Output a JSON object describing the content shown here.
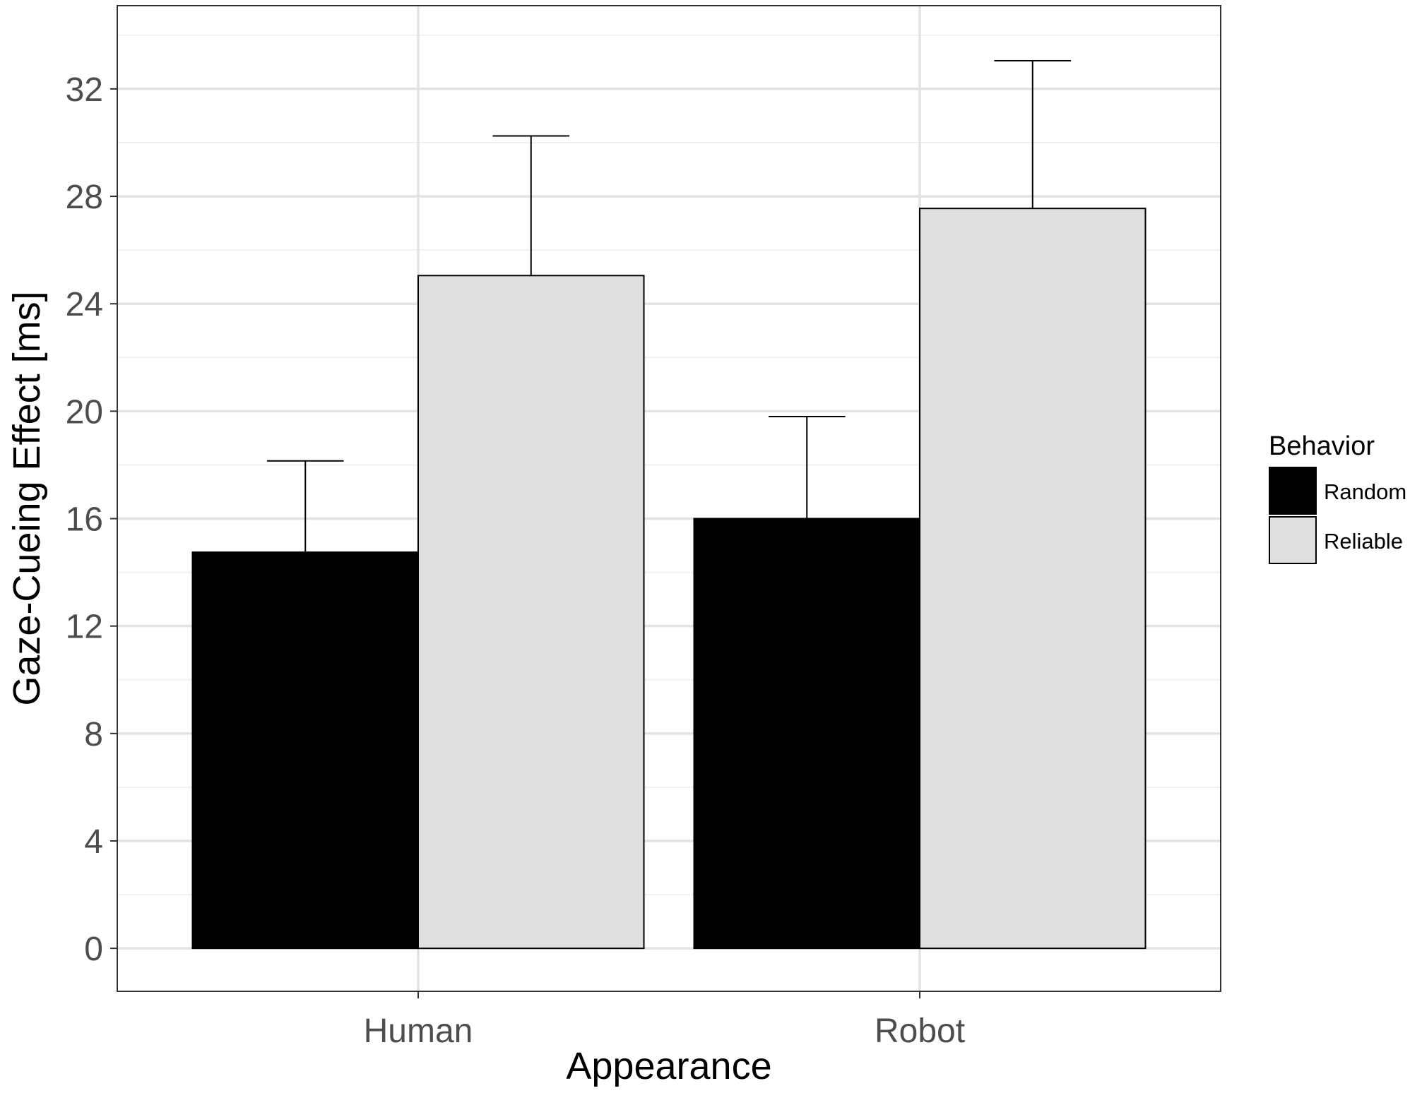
{
  "chart_data": {
    "type": "bar",
    "categories": [
      "Human",
      "Robot"
    ],
    "series": [
      {
        "name": "Random",
        "values": [
          14.75,
          16.0
        ],
        "errors": [
          3.4,
          3.8
        ],
        "color": "#000000"
      },
      {
        "name": "Reliable",
        "values": [
          25.05,
          27.55
        ],
        "errors": [
          5.2,
          5.5
        ],
        "color": "#dfdfdf"
      }
    ],
    "xlabel": "Appearance",
    "ylabel": "Gaze-Cueing Effect [ms]",
    "yticks": [
      "0",
      "4",
      "8",
      "12",
      "16",
      "20",
      "24",
      "28",
      "32"
    ],
    "ylim": [
      -1.6,
      35.1
    ],
    "grid": true,
    "legend": {
      "title": "Behavior",
      "position": "right"
    }
  },
  "colors": {
    "grid_major": "#e3e3e3",
    "grid_minor": "#f0f0f0",
    "panel_border": "#333333",
    "tick_text": "#4d4d4d"
  }
}
